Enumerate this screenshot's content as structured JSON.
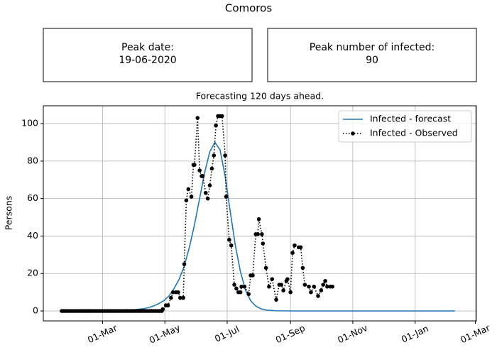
{
  "chart_data": {
    "type": "line",
    "title": "Comoros",
    "cards": [
      {
        "label": "Peak date:",
        "value": "19-06-2020"
      },
      {
        "label": "Peak number of infected:",
        "value": 90
      }
    ],
    "subtitle": "Forecasting 120 days ahead.",
    "ylabel": "Persons",
    "xlim": [
      2,
      426
    ],
    "ylim": [
      -5.3,
      109.5
    ],
    "xticks": [
      {
        "value": 60,
        "label": "01-Mar"
      },
      {
        "value": 121,
        "label": "01-May"
      },
      {
        "value": 182,
        "label": "01-Jul"
      },
      {
        "value": 244,
        "label": "01-Sep"
      },
      {
        "value": 305,
        "label": "01-Nov"
      },
      {
        "value": 366,
        "label": "01-Jan"
      },
      {
        "value": 425,
        "label": "01-Mar"
      }
    ],
    "yticks": [
      0,
      20,
      40,
      60,
      80,
      100
    ],
    "grid": true,
    "legend": "upper right",
    "series": [
      {
        "name": "Infected - forecast",
        "color": "#1f77b4",
        "linestyle": "solid",
        "marker": "none",
        "x": [
          20,
          40,
          60,
          80,
          90,
          100,
          105,
          110,
          115,
          120,
          125,
          130,
          135,
          140,
          145,
          150,
          155,
          160,
          165,
          170,
          175,
          180,
          185,
          190,
          195,
          200,
          205,
          210,
          215,
          220,
          230,
          250,
          300,
          350,
          405
        ],
        "values": [
          0,
          0,
          0.1,
          0.3,
          0.6,
          1.2,
          1.8,
          2.7,
          3.9,
          5.5,
          8,
          12,
          17,
          24,
          34,
          46,
          60,
          74,
          85,
          90,
          86,
          72,
          53,
          35,
          21,
          11,
          5.5,
          2.6,
          1.2,
          0.5,
          0.1,
          0,
          0,
          0,
          0
        ]
      },
      {
        "name": "Infected - Observed",
        "color": "#000000",
        "linestyle": "dotted",
        "marker": "circle",
        "x": [
          20,
          22,
          24,
          26,
          28,
          30,
          32,
          34,
          36,
          38,
          40,
          42,
          44,
          46,
          48,
          50,
          52,
          54,
          56,
          58,
          60,
          62,
          64,
          66,
          68,
          70,
          72,
          74,
          76,
          78,
          80,
          82,
          84,
          86,
          88,
          90,
          92,
          94,
          96,
          98,
          100,
          102,
          104,
          106,
          108,
          110,
          112,
          114,
          116,
          118,
          119,
          122,
          124,
          127,
          129,
          132,
          134,
          136,
          139,
          140,
          142,
          144,
          147,
          149,
          150,
          153,
          155,
          157,
          158,
          161,
          163,
          165,
          167,
          169,
          171,
          173,
          175,
          177,
          180,
          181,
          184,
          186,
          189,
          191,
          193,
          195,
          196,
          199,
          203,
          205,
          207,
          210,
          212,
          213,
          216,
          217,
          220,
          223,
          226,
          230,
          233,
          235,
          237,
          240,
          241,
          244,
          246,
          248,
          252,
          254,
          256,
          258,
          262,
          264,
          267,
          271,
          274,
          276,
          278,
          280,
          283,
          285
        ],
        "values": [
          0,
          0,
          0,
          0,
          0,
          0,
          0,
          0,
          0,
          0,
          0,
          0,
          0,
          0,
          0,
          0,
          0,
          0,
          0,
          0,
          0,
          0,
          0,
          0,
          0,
          0,
          0,
          0,
          0,
          0,
          0,
          0,
          0,
          0,
          0,
          0,
          0,
          0,
          0,
          0,
          0,
          0,
          0,
          0,
          0,
          0,
          0,
          0,
          0,
          0,
          1,
          3,
          3,
          7,
          10,
          10,
          10,
          7,
          7,
          25,
          59,
          65,
          61,
          78,
          78,
          103,
          75,
          72,
          72,
          63,
          60,
          67,
          76,
          83,
          99,
          104,
          104,
          104,
          83,
          61,
          38,
          35,
          14,
          12,
          10,
          10,
          13,
          13,
          9,
          19,
          19,
          41,
          41,
          49,
          41,
          36,
          23,
          13,
          17,
          6,
          14,
          14,
          11,
          16,
          17,
          10,
          31,
          35,
          34,
          34,
          23,
          14,
          13,
          10,
          13,
          8,
          11,
          14,
          16,
          13,
          13,
          13
        ]
      }
    ]
  }
}
